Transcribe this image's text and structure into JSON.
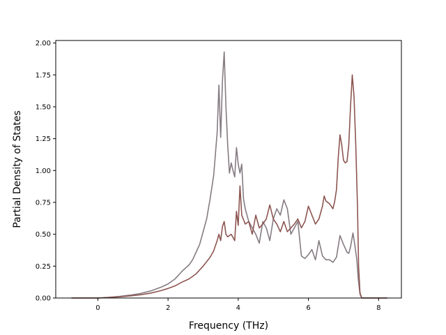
{
  "chart_data": {
    "type": "line",
    "title": "",
    "xlabel": "Frequency (THz)",
    "ylabel": "Partial Density of States",
    "xlim": [
      -1.2,
      8.65
    ],
    "ylim": [
      0.0,
      2.02
    ],
    "xticks": [
      0,
      2,
      4,
      6,
      8
    ],
    "yticks": [
      0.0,
      0.25,
      0.5,
      0.75,
      1.0,
      1.25,
      1.5,
      1.75,
      2.0
    ],
    "ytick_labels": [
      "0.00",
      "0.25",
      "0.50",
      "0.75",
      "1.00",
      "1.25",
      "1.50",
      "1.75",
      "2.00"
    ],
    "grid": false,
    "legend": "none",
    "series": [
      {
        "color": "#857b82",
        "points": [
          [
            -0.75,
            0.0
          ],
          [
            0.0,
            0.0
          ],
          [
            0.3,
            0.005
          ],
          [
            0.6,
            0.012
          ],
          [
            0.9,
            0.022
          ],
          [
            1.2,
            0.035
          ],
          [
            1.5,
            0.055
          ],
          [
            1.8,
            0.085
          ],
          [
            2.0,
            0.11
          ],
          [
            2.2,
            0.15
          ],
          [
            2.4,
            0.21
          ],
          [
            2.6,
            0.26
          ],
          [
            2.7,
            0.3
          ],
          [
            2.8,
            0.36
          ],
          [
            2.9,
            0.42
          ],
          [
            3.0,
            0.52
          ],
          [
            3.1,
            0.62
          ],
          [
            3.2,
            0.78
          ],
          [
            3.3,
            0.96
          ],
          [
            3.4,
            1.3
          ],
          [
            3.45,
            1.67
          ],
          [
            3.5,
            1.26
          ],
          [
            3.55,
            1.7
          ],
          [
            3.6,
            1.93
          ],
          [
            3.65,
            1.5
          ],
          [
            3.7,
            1.2
          ],
          [
            3.75,
            0.98
          ],
          [
            3.8,
            1.06
          ],
          [
            3.85,
            1.0
          ],
          [
            3.9,
            0.95
          ],
          [
            3.95,
            1.18
          ],
          [
            4.0,
            1.05
          ],
          [
            4.05,
            0.98
          ],
          [
            4.1,
            1.05
          ],
          [
            4.15,
            0.78
          ],
          [
            4.2,
            0.7
          ],
          [
            4.3,
            0.6
          ],
          [
            4.4,
            0.55
          ],
          [
            4.5,
            0.5
          ],
          [
            4.6,
            0.43
          ],
          [
            4.7,
            0.6
          ],
          [
            4.8,
            0.55
          ],
          [
            4.9,
            0.45
          ],
          [
            5.0,
            0.62
          ],
          [
            5.1,
            0.7
          ],
          [
            5.2,
            0.65
          ],
          [
            5.3,
            0.77
          ],
          [
            5.4,
            0.7
          ],
          [
            5.5,
            0.5
          ],
          [
            5.6,
            0.55
          ],
          [
            5.7,
            0.6
          ],
          [
            5.8,
            0.33
          ],
          [
            5.9,
            0.31
          ],
          [
            6.0,
            0.34
          ],
          [
            6.1,
            0.38
          ],
          [
            6.2,
            0.3
          ],
          [
            6.3,
            0.45
          ],
          [
            6.4,
            0.33
          ],
          [
            6.5,
            0.3
          ],
          [
            6.6,
            0.3
          ],
          [
            6.7,
            0.28
          ],
          [
            6.8,
            0.32
          ],
          [
            6.9,
            0.49
          ],
          [
            7.0,
            0.42
          ],
          [
            7.1,
            0.36
          ],
          [
            7.15,
            0.35
          ],
          [
            7.2,
            0.4
          ],
          [
            7.27,
            0.51
          ],
          [
            7.32,
            0.42
          ],
          [
            7.38,
            0.3
          ],
          [
            7.42,
            0.15
          ],
          [
            7.47,
            0.03
          ],
          [
            7.52,
            0.0
          ],
          [
            8.25,
            0.0
          ]
        ]
      },
      {
        "color": "#8c5550",
        "points": [
          [
            -0.75,
            0.0
          ],
          [
            0.0,
            0.0
          ],
          [
            0.3,
            0.004
          ],
          [
            0.6,
            0.009
          ],
          [
            0.9,
            0.016
          ],
          [
            1.2,
            0.025
          ],
          [
            1.5,
            0.038
          ],
          [
            1.8,
            0.058
          ],
          [
            2.0,
            0.075
          ],
          [
            2.2,
            0.095
          ],
          [
            2.4,
            0.125
          ],
          [
            2.6,
            0.15
          ],
          [
            2.8,
            0.19
          ],
          [
            3.0,
            0.25
          ],
          [
            3.2,
            0.32
          ],
          [
            3.3,
            0.37
          ],
          [
            3.4,
            0.45
          ],
          [
            3.45,
            0.5
          ],
          [
            3.5,
            0.45
          ],
          [
            3.55,
            0.56
          ],
          [
            3.6,
            0.6
          ],
          [
            3.65,
            0.5
          ],
          [
            3.7,
            0.48
          ],
          [
            3.8,
            0.5
          ],
          [
            3.9,
            0.45
          ],
          [
            3.95,
            0.68
          ],
          [
            4.0,
            0.57
          ],
          [
            4.05,
            0.88
          ],
          [
            4.1,
            0.65
          ],
          [
            4.2,
            0.58
          ],
          [
            4.3,
            0.6
          ],
          [
            4.4,
            0.5
          ],
          [
            4.5,
            0.65
          ],
          [
            4.6,
            0.55
          ],
          [
            4.7,
            0.58
          ],
          [
            4.8,
            0.62
          ],
          [
            4.9,
            0.73
          ],
          [
            5.0,
            0.62
          ],
          [
            5.1,
            0.58
          ],
          [
            5.2,
            0.52
          ],
          [
            5.3,
            0.6
          ],
          [
            5.4,
            0.52
          ],
          [
            5.5,
            0.55
          ],
          [
            5.6,
            0.58
          ],
          [
            5.7,
            0.62
          ],
          [
            5.8,
            0.55
          ],
          [
            5.9,
            0.6
          ],
          [
            6.0,
            0.72
          ],
          [
            6.1,
            0.65
          ],
          [
            6.2,
            0.58
          ],
          [
            6.3,
            0.62
          ],
          [
            6.4,
            0.72
          ],
          [
            6.45,
            0.8
          ],
          [
            6.5,
            0.76
          ],
          [
            6.6,
            0.74
          ],
          [
            6.7,
            0.7
          ],
          [
            6.75,
            0.76
          ],
          [
            6.8,
            0.85
          ],
          [
            6.85,
            1.1
          ],
          [
            6.9,
            1.28
          ],
          [
            6.95,
            1.2
          ],
          [
            7.0,
            1.08
          ],
          [
            7.05,
            1.06
          ],
          [
            7.1,
            1.07
          ],
          [
            7.15,
            1.2
          ],
          [
            7.2,
            1.5
          ],
          [
            7.25,
            1.75
          ],
          [
            7.3,
            1.58
          ],
          [
            7.35,
            1.2
          ],
          [
            7.4,
            0.7
          ],
          [
            7.43,
            0.25
          ],
          [
            7.47,
            0.04
          ],
          [
            7.52,
            0.0
          ],
          [
            8.25,
            0.0
          ]
        ]
      }
    ]
  }
}
